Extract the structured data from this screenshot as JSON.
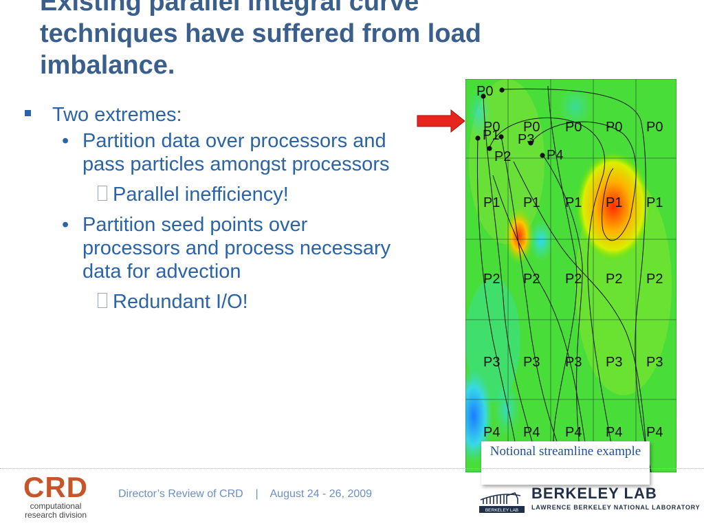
{
  "slide": {
    "title_lines": [
      "Existing parallel integral curve",
      "techniques have suffered from load",
      "imbalance."
    ],
    "bullets": {
      "b1": "Two extremes:",
      "b1_1": "Partition data over processors and pass particles amongst processors",
      "b1_1_1": "Parallel inefficiency!",
      "b1_2": "Partition seed points over processors and process necessary data for advection",
      "b1_2_1": "Redundant I/O!"
    },
    "colors": {
      "title": "#3a5f8c",
      "bullet_text": "#2b63a8",
      "arrow": "#e8251d",
      "caption_text": "#1f4e9a",
      "crd_orange": "#c8552a",
      "footer_text": "#6b8fc4"
    }
  },
  "figure": {
    "grid_rows": [
      [
        "P0",
        "P0",
        "P0",
        "P0",
        "P0"
      ],
      [
        "P1",
        "P1",
        "P1",
        "P1",
        "P1"
      ],
      [
        "P2",
        "P2",
        "P2",
        "P2",
        "P2"
      ],
      [
        "P3",
        "P3",
        "P3",
        "P3",
        "P3"
      ],
      [
        "P4",
        "P4",
        "P4",
        "P4",
        "P4"
      ]
    ],
    "seed_labels": [
      "P0",
      "P1",
      "P3",
      "P2",
      "P4"
    ],
    "caption": "Notional streamline example"
  },
  "footer": {
    "event": "Director’s Review of CRD    |    August 24 - 26, 2009",
    "crd_letters": "CRD",
    "crd_line1": "computational",
    "crd_line2": "research division",
    "lab_name": "BERKELEY LAB",
    "lab_full": "LAWRENCE BERKELEY NATIONAL LABORATORY",
    "lab_icon_text": "BERKELEY LAB"
  }
}
